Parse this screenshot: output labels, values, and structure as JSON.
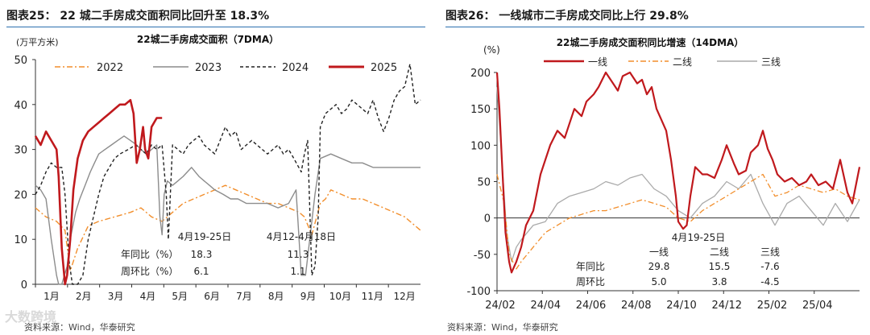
{
  "left": {
    "title": "图表25： 22 城二手房成交面积同比回升至 18.3%",
    "source": "资料来源：Wind，华泰研究",
    "chart_data": {
      "type": "line",
      "title": "22城二手房成交面积（7DMA）",
      "ylabel": "(万平方米)",
      "ylim": [
        0,
        50
      ],
      "yticks": [
        "0",
        "10",
        "20",
        "30",
        "40",
        "50"
      ],
      "xticks": [
        "1月",
        "2月",
        "3月",
        "4月",
        "5月",
        "6月",
        "7月",
        "8月",
        "9月",
        "10月",
        "11月",
        "12月"
      ],
      "x_day_range": [
        0,
        365
      ],
      "grid": false,
      "legend_position": "top",
      "series": [
        {
          "name": "2022",
          "color": "#f28e2b",
          "style": "dashdot",
          "x": [
            0,
            10,
            20,
            28,
            33,
            40,
            50,
            60,
            75,
            90,
            100,
            110,
            120,
            130,
            140,
            150,
            160,
            170,
            180,
            190,
            200,
            210,
            220,
            230,
            240,
            250,
            255,
            262,
            270,
            275,
            280,
            290,
            300,
            310,
            320,
            330,
            340,
            350,
            355,
            360,
            365
          ],
          "y": [
            17,
            15,
            14,
            12,
            3,
            8,
            13,
            14,
            15,
            16,
            17,
            15,
            14,
            16,
            18,
            19,
            20,
            21,
            22,
            21,
            20,
            19,
            18,
            18,
            17,
            16,
            15,
            11,
            18,
            19,
            21,
            20,
            19,
            19,
            18,
            17,
            16,
            15,
            14,
            13,
            12
          ]
        },
        {
          "name": "2023",
          "color": "#8c8c8c",
          "style": "solid",
          "x": [
            0,
            5,
            10,
            15,
            20,
            22,
            25,
            30,
            33,
            38,
            42,
            47,
            52,
            56,
            60,
            66,
            72,
            78,
            84,
            90,
            96,
            100,
            105,
            110,
            115,
            118,
            120,
            122,
            125,
            130,
            135,
            140,
            148,
            155,
            160,
            165,
            170,
            178,
            185,
            192,
            200,
            210,
            220,
            230,
            240,
            247,
            252,
            256,
            260,
            265,
            270,
            280,
            290,
            300,
            310,
            320,
            330,
            340,
            350,
            360,
            365
          ],
          "y": [
            22,
            21,
            19,
            10,
            2,
            0,
            0,
            4,
            10,
            16,
            19,
            22,
            25,
            27,
            29,
            30,
            31,
            32,
            33,
            32,
            31,
            30,
            29,
            30,
            31,
            15,
            11,
            20,
            23,
            22,
            23,
            24,
            26,
            24,
            23,
            22,
            21,
            20,
            19,
            19,
            18,
            18,
            18,
            17,
            18,
            21,
            2,
            2,
            10,
            20,
            28,
            29,
            28,
            27,
            27,
            26,
            26,
            26,
            26,
            26,
            26
          ]
        },
        {
          "name": "2024",
          "color": "#222222",
          "style": "dashed",
          "x": [
            0,
            5,
            10,
            15,
            20,
            25,
            28,
            32,
            35,
            40,
            45,
            50,
            55,
            60,
            65,
            70,
            75,
            80,
            88,
            95,
            100,
            105,
            110,
            115,
            120,
            124,
            126,
            130,
            135,
            140,
            145,
            150,
            155,
            160,
            165,
            170,
            175,
            180,
            185,
            190,
            195,
            200,
            205,
            210,
            215,
            220,
            225,
            230,
            235,
            240,
            245,
            252,
            255,
            258,
            262,
            265,
            268,
            270,
            275,
            280,
            285,
            290,
            295,
            300,
            305,
            310,
            315,
            320,
            325,
            330,
            335,
            340,
            345,
            350,
            355,
            360,
            365
          ],
          "y": [
            20,
            22,
            25,
            27,
            26,
            26,
            20,
            5,
            0,
            0,
            2,
            10,
            15,
            20,
            24,
            26,
            28,
            29,
            30,
            31,
            30,
            29,
            31,
            30,
            31,
            20,
            10,
            31,
            30,
            29,
            31,
            32,
            33,
            31,
            30,
            29,
            32,
            35,
            33,
            34,
            30,
            31,
            32,
            31,
            30,
            29,
            30,
            31,
            29,
            30,
            28,
            25,
            29,
            32,
            2,
            4,
            15,
            35,
            38,
            39,
            40,
            38,
            39,
            41,
            40,
            39,
            38,
            41,
            37,
            34,
            37,
            41,
            43,
            44,
            49,
            40,
            41
          ]
        },
        {
          "name": "2025",
          "color": "#c0191d",
          "style": "solid-thick",
          "x": [
            0,
            5,
            10,
            15,
            20,
            22,
            25,
            28,
            30,
            33,
            36,
            40,
            45,
            50,
            55,
            60,
            65,
            70,
            75,
            80,
            85,
            90,
            93,
            96,
            99,
            102,
            104,
            107,
            110,
            115,
            120
          ],
          "y": [
            33,
            31,
            34,
            32,
            30,
            24,
            8,
            0,
            2,
            10,
            21,
            28,
            32,
            34,
            35,
            36,
            37,
            38,
            39,
            40,
            40,
            41,
            38,
            27,
            30,
            35,
            30,
            28,
            35,
            37,
            37
          ]
        }
      ],
      "annotation_table": {
        "headers": [
          "4月19-25日",
          "4月12-4月18日"
        ],
        "rows": [
          {
            "label": "年同比（%）",
            "values": [
              "18.3",
              "11.3"
            ]
          },
          {
            "label": "周环比（%）",
            "values": [
              "6.1",
              "1.1"
            ]
          }
        ]
      }
    }
  },
  "right": {
    "title": "图表26： 一线城市二手房成交同比上行 29.8%",
    "source": "资料来源：Wind，华泰研究",
    "chart_data": {
      "type": "line",
      "title": "22城二手房成交面积同比增速（14DMA）",
      "ylabel": "(%)",
      "ylim": [
        -100,
        200
      ],
      "yticks": [
        "-100",
        "-50",
        "0",
        "50",
        "100",
        "150",
        "200"
      ],
      "xticks": [
        "24/02",
        "24/04",
        "24/06",
        "24/08",
        "24/10",
        "24/12",
        "25/02",
        "25/04"
      ],
      "x_month_range": [
        0,
        15
      ],
      "grid": false,
      "legend_position": "top",
      "series": [
        {
          "name": "一线",
          "color": "#c0191d",
          "style": "solid",
          "x": [
            0,
            0.1,
            0.2,
            0.35,
            0.5,
            0.6,
            0.8,
            1.0,
            1.2,
            1.5,
            1.8,
            2.0,
            2.2,
            2.5,
            2.8,
            3.0,
            3.2,
            3.5,
            3.7,
            4.0,
            4.2,
            4.5,
            4.7,
            5.0,
            5.2,
            5.5,
            5.8,
            6.0,
            6.2,
            6.4,
            6.6,
            6.8,
            7.0,
            7.2,
            7.4,
            7.5,
            7.7,
            7.85,
            8.0,
            8.2,
            8.5,
            8.7,
            9.0,
            9.3,
            9.5,
            9.8,
            10.0,
            10.3,
            10.5,
            10.8,
            11.0,
            11.2,
            11.4,
            11.6,
            11.9,
            12.2,
            12.5,
            12.8,
            13.0,
            13.3,
            13.6,
            13.9,
            14.2,
            14.5,
            14.7,
            15.0
          ],
          "y": [
            200,
            150,
            80,
            -20,
            -60,
            -75,
            -60,
            -40,
            -10,
            10,
            60,
            80,
            100,
            120,
            110,
            130,
            150,
            140,
            160,
            170,
            180,
            200,
            190,
            175,
            195,
            200,
            185,
            190,
            170,
            180,
            150,
            135,
            120,
            80,
            30,
            -5,
            -15,
            -10,
            30,
            70,
            60,
            60,
            55,
            80,
            100,
            75,
            60,
            65,
            90,
            100,
            120,
            95,
            80,
            60,
            50,
            55,
            45,
            50,
            60,
            45,
            50,
            40,
            80,
            35,
            20,
            70
          ]
        },
        {
          "name": "二线",
          "color": "#f28e2b",
          "style": "dashdot",
          "x": [
            0,
            0.3,
            0.5,
            0.8,
            1.0,
            1.5,
            2.0,
            2.5,
            3.0,
            3.5,
            4.0,
            4.5,
            5.0,
            5.5,
            6.0,
            6.5,
            7.0,
            7.5,
            8.0,
            8.5,
            9.0,
            9.5,
            10.0,
            10.5,
            11.0,
            11.5,
            12.0,
            12.5,
            13.0,
            13.5,
            14.0,
            14.5,
            15.0
          ],
          "y": [
            60,
            20,
            -50,
            -70,
            -60,
            -40,
            -20,
            -10,
            0,
            5,
            10,
            10,
            15,
            20,
            25,
            20,
            15,
            0,
            -5,
            10,
            20,
            30,
            40,
            50,
            60,
            30,
            35,
            45,
            40,
            35,
            40,
            30,
            25
          ]
        },
        {
          "name": "三线",
          "color": "#aaaaaa",
          "style": "solid",
          "x": [
            0,
            0.2,
            0.4,
            0.6,
            0.8,
            1.0,
            1.5,
            2.0,
            2.5,
            3.0,
            3.5,
            4.0,
            4.5,
            5.0,
            5.5,
            6.0,
            6.5,
            7.0,
            7.5,
            8.0,
            8.5,
            9.0,
            9.5,
            10.0,
            10.5,
            11.0,
            11.5,
            12.0,
            12.5,
            13.0,
            13.5,
            14.0,
            14.5,
            15.0
          ],
          "y": [
            180,
            80,
            -20,
            -60,
            -40,
            -30,
            -10,
            -5,
            20,
            30,
            35,
            40,
            50,
            45,
            55,
            60,
            40,
            30,
            10,
            0,
            20,
            30,
            50,
            40,
            60,
            20,
            -10,
            20,
            30,
            10,
            -10,
            20,
            -5,
            25
          ]
        }
      ],
      "annotation_table": {
        "headers": [
          "一线",
          "二线",
          "三线"
        ],
        "date": "4月19-25日",
        "rows": [
          {
            "label": "年同比",
            "values": [
              "29.8",
              "15.5",
              "-7.6"
            ]
          },
          {
            "label": "周环比",
            "values": [
              "5.0",
              "3.8",
              "-4.5"
            ]
          }
        ]
      }
    }
  },
  "watermark": "大数跨境"
}
